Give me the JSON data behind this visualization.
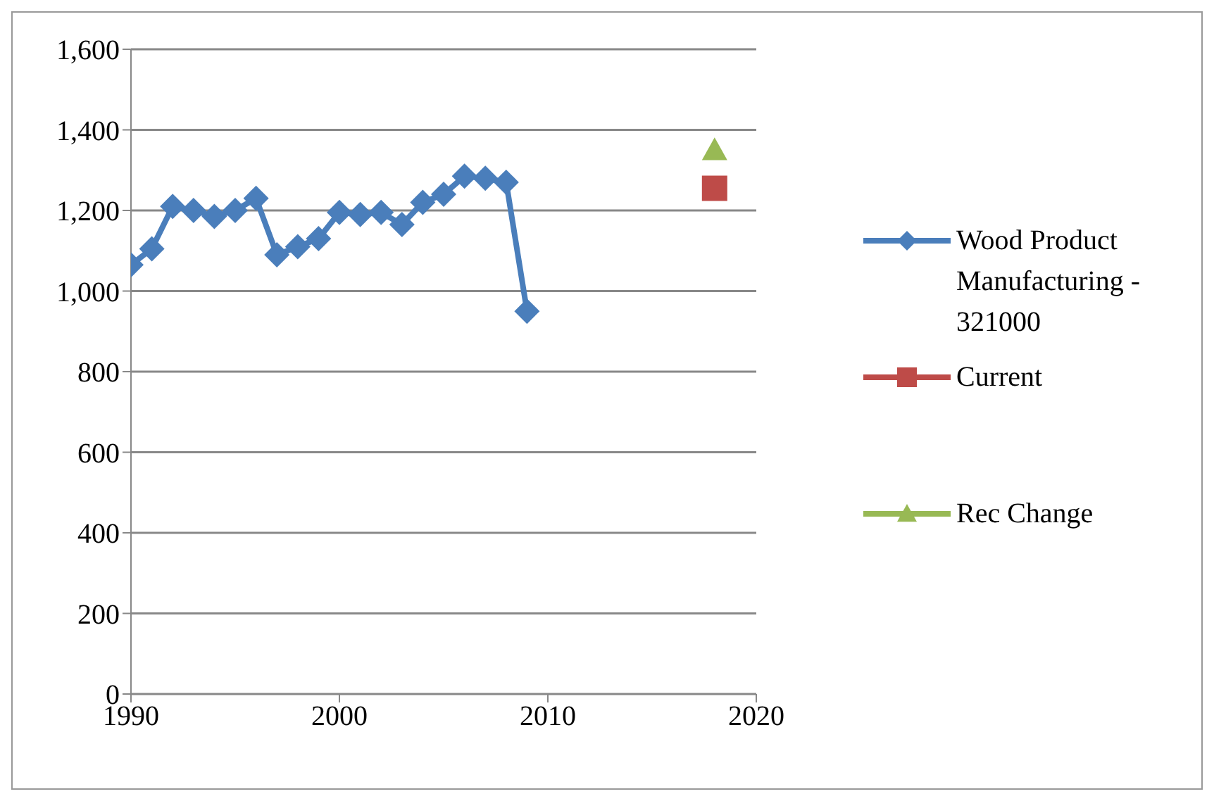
{
  "chart_data": {
    "type": "line",
    "xlim": [
      1990,
      2020
    ],
    "xticks": [
      1990,
      2000,
      2010,
      2020
    ],
    "ylim": [
      0,
      1600
    ],
    "yticks": [
      {
        "value": 0,
        "label": "0"
      },
      {
        "value": 200,
        "label": "200"
      },
      {
        "value": 400,
        "label": "400"
      },
      {
        "value": 600,
        "label": "600"
      },
      {
        "value": 800,
        "label": "800"
      },
      {
        "value": 1000,
        "label": "1,000"
      },
      {
        "value": 1200,
        "label": "1,200"
      },
      {
        "value": 1400,
        "label": "1,400"
      },
      {
        "value": 1600,
        "label": "1,600"
      }
    ],
    "grid": "y",
    "legend": "right",
    "line_style": "solid",
    "series": [
      {
        "name": "Wood Product Manufacturing - 321000",
        "color": "#4a7ebb",
        "marker": "diamond",
        "x": [
          1990,
          1991,
          1992,
          1993,
          1994,
          1995,
          1996,
          1997,
          1998,
          1999,
          2000,
          2001,
          2002,
          2003,
          2004,
          2005,
          2006,
          2007,
          2008,
          2009
        ],
        "values": [
          1065,
          1105,
          1210,
          1200,
          1185,
          1200,
          1230,
          1090,
          1110,
          1130,
          1195,
          1190,
          1195,
          1165,
          1220,
          1240,
          1285,
          1280,
          1270,
          950
        ]
      },
      {
        "name": "Current",
        "color": "#be4b48",
        "marker": "square",
        "x": [
          2018
        ],
        "values": [
          1255
        ]
      },
      {
        "name": "Rec Change",
        "color": "#98b954",
        "marker": "triangle",
        "x": [
          2018
        ],
        "values": [
          1350
        ]
      }
    ]
  }
}
